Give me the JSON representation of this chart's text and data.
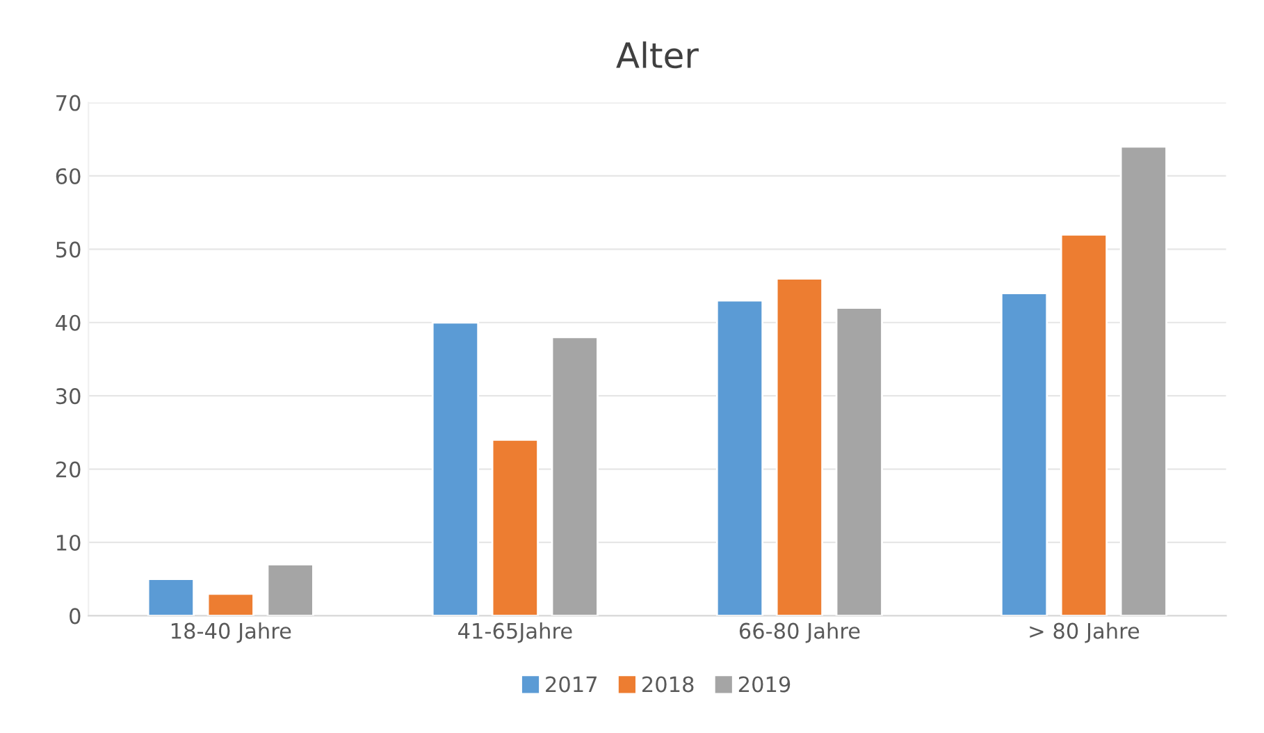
{
  "chart_data": {
    "type": "bar",
    "title": "Alter",
    "categories": [
      "18-40 Jahre",
      "41-65Jahre",
      "66-80 Jahre",
      "> 80 Jahre"
    ],
    "series": [
      {
        "name": "2017",
        "color": "#5b9bd5",
        "values": [
          5,
          40,
          43,
          44
        ]
      },
      {
        "name": "2018",
        "color": "#ed7d31",
        "values": [
          3,
          24,
          46,
          52
        ]
      },
      {
        "name": "2019",
        "color": "#a5a5a5",
        "values": [
          7,
          38,
          42,
          64
        ]
      }
    ],
    "ylim": [
      0,
      70
    ],
    "yticks": [
      0,
      10,
      20,
      30,
      40,
      50,
      60,
      70
    ],
    "grid": "y",
    "legend": "bottom"
  }
}
